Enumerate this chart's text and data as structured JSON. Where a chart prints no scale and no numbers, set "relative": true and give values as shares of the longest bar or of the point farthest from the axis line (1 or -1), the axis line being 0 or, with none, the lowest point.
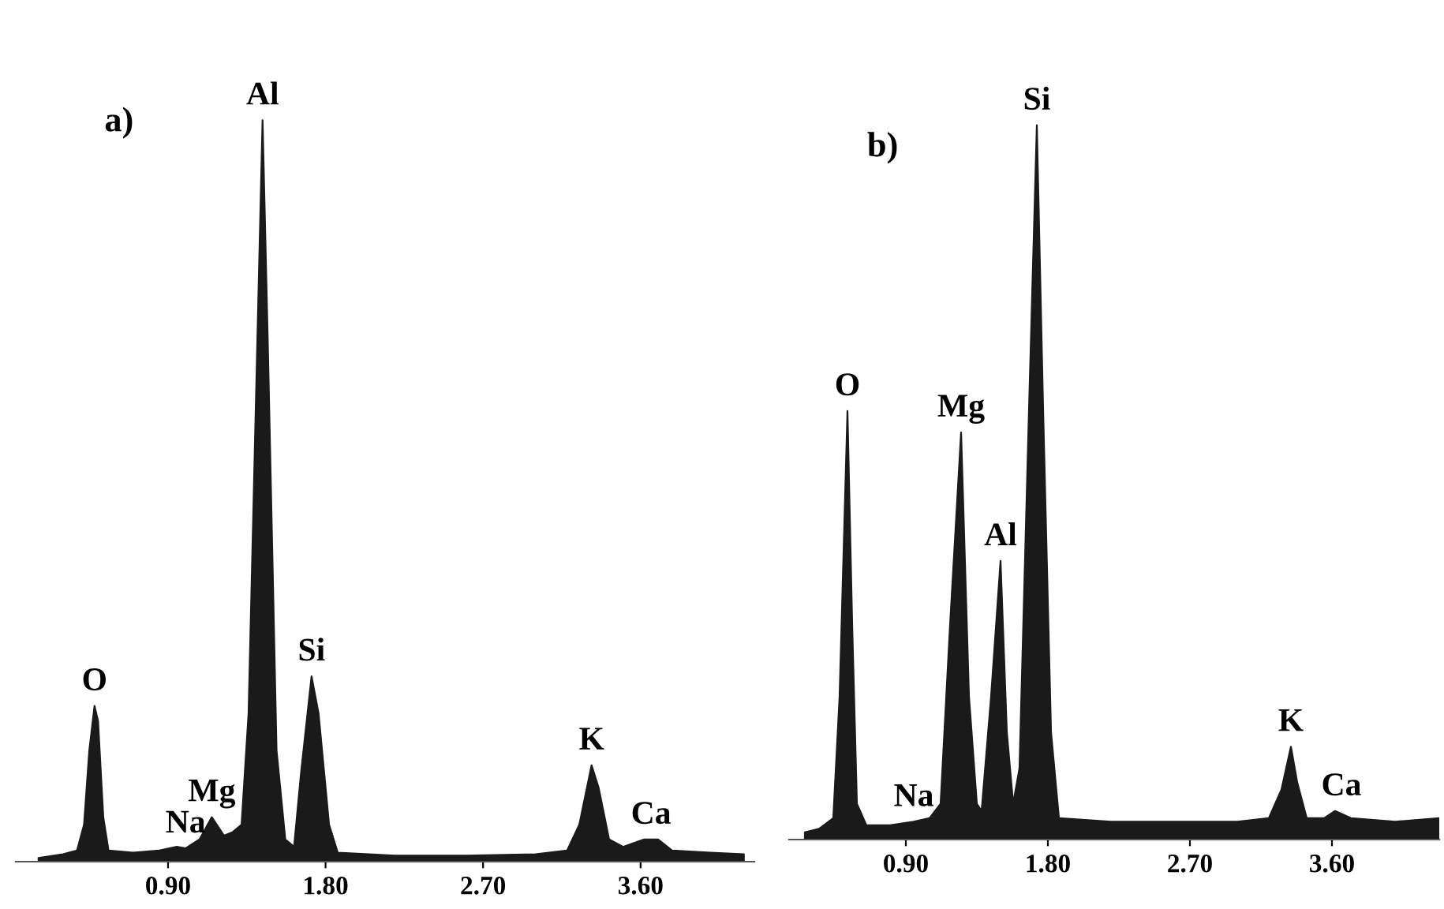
{
  "chart_data": [
    {
      "type": "area",
      "relative": true,
      "tick_labels": "x",
      "xlim": [
        0.03,
        4.25
      ],
      "xticks": [
        {
          "value": 0.9,
          "label": "0.90"
        },
        {
          "value": 1.8,
          "label": "1.80"
        },
        {
          "value": 2.7,
          "label": "2.70"
        },
        {
          "value": 3.6,
          "label": "3.60"
        }
      ],
      "series": [
        {
          "color": "#1a1a1a",
          "x": [
            0.16,
            0.3,
            0.38,
            0.42,
            0.45,
            0.48,
            0.5,
            0.53,
            0.56,
            0.7,
            0.85,
            0.95,
            1.0,
            1.08,
            1.15,
            1.22,
            1.27,
            1.32,
            1.36,
            1.4,
            1.44,
            1.47,
            1.52,
            1.57,
            1.62,
            1.66,
            1.72,
            1.76,
            1.82,
            1.87,
            2.2,
            2.6,
            3.0,
            3.18,
            3.25,
            3.32,
            3.36,
            3.42,
            3.5,
            3.62,
            3.7,
            3.78,
            4.0,
            4.19
          ],
          "values": [
            0.005,
            0.01,
            0.015,
            0.05,
            0.15,
            0.21,
            0.19,
            0.06,
            0.015,
            0.012,
            0.015,
            0.02,
            0.018,
            0.03,
            0.06,
            0.035,
            0.04,
            0.05,
            0.2,
            0.6,
            1.0,
            0.7,
            0.15,
            0.03,
            0.02,
            0.12,
            0.25,
            0.2,
            0.05,
            0.012,
            0.008,
            0.008,
            0.01,
            0.015,
            0.05,
            0.13,
            0.1,
            0.03,
            0.02,
            0.03,
            0.03,
            0.015,
            0.012,
            0.01
          ]
        }
      ],
      "annotations": [
        "a)",
        {
          "text": "O",
          "x": 0.48,
          "y": 0.21
        },
        {
          "text": "Na",
          "x": 1.0,
          "y": 0.018
        },
        {
          "text": "Mg",
          "x": 1.15,
          "y": 0.06
        },
        {
          "text": "Al",
          "x": 1.44,
          "y": 1.0
        },
        {
          "text": "Si",
          "x": 1.72,
          "y": 0.25
        },
        {
          "text": "K",
          "x": 3.32,
          "y": 0.13
        },
        {
          "text": "Ca",
          "x": 3.66,
          "y": 0.03
        }
      ]
    },
    {
      "type": "area",
      "relative": true,
      "tick_labels": "x",
      "xlim": [
        0.16,
        4.28
      ],
      "xticks": [
        {
          "value": 0.9,
          "label": "0.90"
        },
        {
          "value": 1.8,
          "label": "1.80"
        },
        {
          "value": 2.7,
          "label": "2.70"
        },
        {
          "value": 3.6,
          "label": "3.60"
        }
      ],
      "series": [
        {
          "color": "#1a1a1a",
          "x": [
            0.26,
            0.35,
            0.44,
            0.48,
            0.53,
            0.56,
            0.59,
            0.65,
            0.8,
            0.95,
            1.05,
            1.12,
            1.18,
            1.25,
            1.3,
            1.35,
            1.38,
            1.44,
            1.5,
            1.54,
            1.58,
            1.62,
            1.68,
            1.73,
            1.77,
            1.82,
            1.87,
            2.2,
            2.6,
            3.0,
            3.2,
            3.28,
            3.34,
            3.38,
            3.44,
            3.55,
            3.62,
            3.72,
            4.0,
            4.28
          ],
          "values": [
            0.01,
            0.015,
            0.03,
            0.2,
            0.6,
            0.3,
            0.05,
            0.02,
            0.02,
            0.025,
            0.03,
            0.05,
            0.3,
            0.57,
            0.2,
            0.05,
            0.04,
            0.2,
            0.39,
            0.15,
            0.05,
            0.1,
            0.6,
            1.0,
            0.6,
            0.15,
            0.03,
            0.025,
            0.025,
            0.025,
            0.03,
            0.07,
            0.13,
            0.08,
            0.03,
            0.03,
            0.04,
            0.03,
            0.025,
            0.03
          ]
        }
      ],
      "annotations": [
        "b)",
        {
          "text": "O",
          "x": 0.53,
          "y": 0.6
        },
        {
          "text": "Na",
          "x": 0.95,
          "y": 0.025
        },
        {
          "text": "Mg",
          "x": 1.25,
          "y": 0.57
        },
        {
          "text": "Al",
          "x": 1.5,
          "y": 0.39
        },
        {
          "text": "Si",
          "x": 1.73,
          "y": 1.0
        },
        {
          "text": "K",
          "x": 3.34,
          "y": 0.13
        },
        {
          "text": "Ca",
          "x": 3.66,
          "y": 0.04
        }
      ]
    }
  ]
}
